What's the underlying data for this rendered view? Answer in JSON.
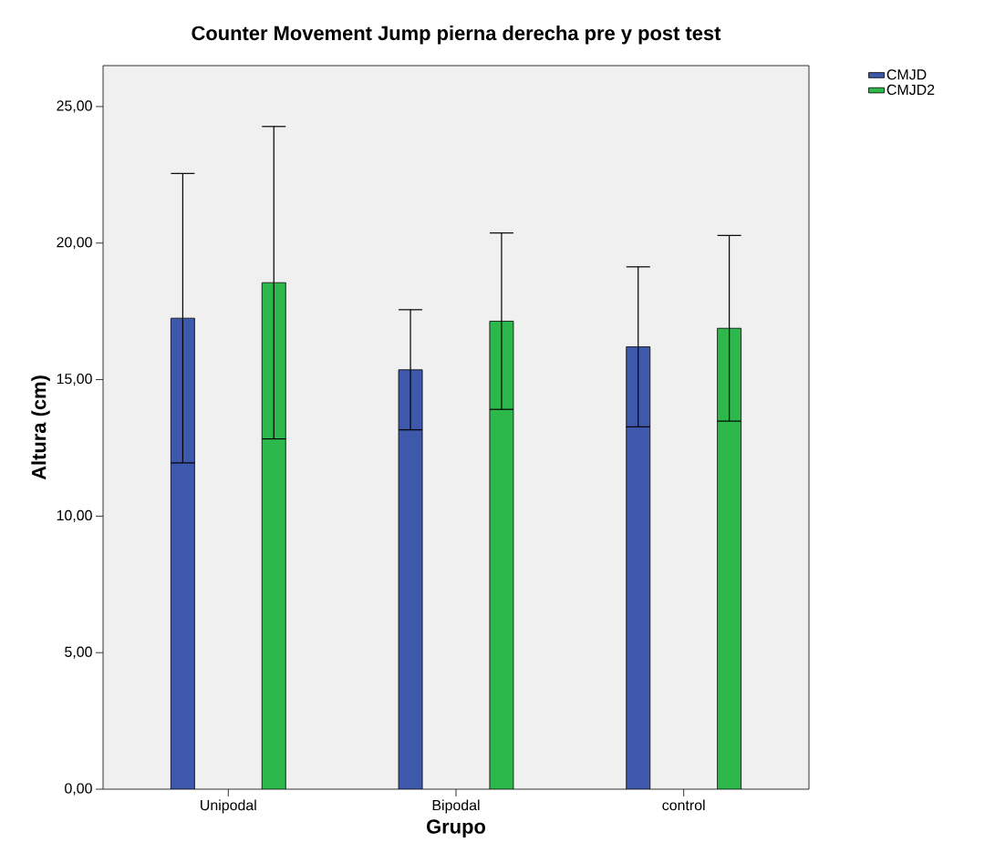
{
  "chart_data": {
    "type": "bar",
    "title": "Counter Movement Jump pierna derecha pre y post test",
    "xlabel": "Grupo",
    "ylabel": "Altura (cm)",
    "categories": [
      "Unipodal",
      "Bipodal",
      "control"
    ],
    "series": [
      {
        "name": "CMJD",
        "color": "#3e58ac",
        "values": [
          17.25,
          15.36,
          16.2
        ],
        "errors": [
          5.3,
          2.2,
          2.93
        ]
      },
      {
        "name": "CMJD2",
        "color": "#2db84b",
        "values": [
          18.55,
          17.14,
          16.88
        ],
        "errors": [
          5.72,
          3.23,
          3.4
        ]
      }
    ],
    "ylim": [
      0,
      26.5
    ],
    "yticks": [
      {
        "value": 0,
        "label": "0,00"
      },
      {
        "value": 5,
        "label": "5,00"
      },
      {
        "value": 10,
        "label": "10,00"
      },
      {
        "value": 15,
        "label": "15,00"
      },
      {
        "value": 20,
        "label": "20,00"
      },
      {
        "value": 25,
        "label": "25,00"
      }
    ],
    "legend": "top right"
  }
}
